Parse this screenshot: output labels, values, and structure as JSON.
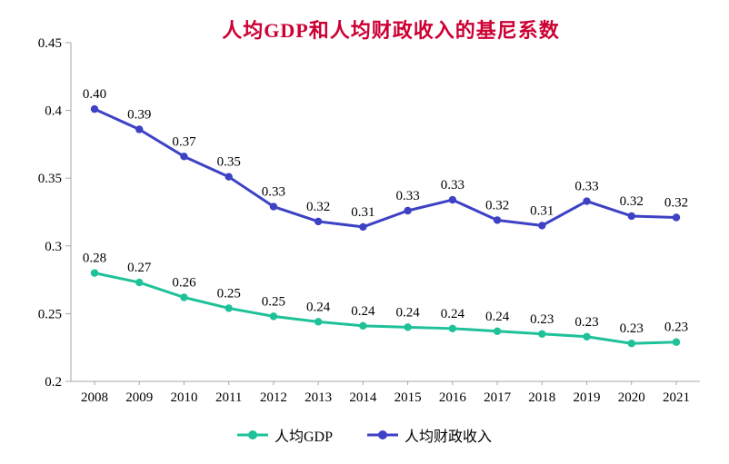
{
  "chart_data": {
    "type": "line",
    "title": "人均GDP和人均财政收入的基尼系数",
    "title_color": "#cc0033",
    "categories": [
      "2008",
      "2009",
      "2010",
      "2011",
      "2012",
      "2013",
      "2014",
      "2015",
      "2016",
      "2017",
      "2018",
      "2019",
      "2020",
      "2021"
    ],
    "series": [
      {
        "name": "人均GDP",
        "color": "#1fc198",
        "values": [
          0.28,
          0.273,
          0.262,
          0.254,
          0.248,
          0.244,
          0.241,
          0.24,
          0.239,
          0.237,
          0.235,
          0.233,
          0.228,
          0.229
        ],
        "labels": [
          "0.28",
          "0.27",
          "0.26",
          "0.25",
          "0.25",
          "0.24",
          "0.24",
          "0.24",
          "0.24",
          "0.24",
          "0.23",
          "0.23",
          "0.23",
          "0.23"
        ]
      },
      {
        "name": "人均财政收入",
        "color": "#3d42c4",
        "values": [
          0.401,
          0.386,
          0.366,
          0.351,
          0.329,
          0.318,
          0.314,
          0.326,
          0.334,
          0.319,
          0.315,
          0.333,
          0.322,
          0.321
        ],
        "labels": [
          "0.40",
          "0.39",
          "0.37",
          "0.35",
          "0.33",
          "0.32",
          "0.31",
          "0.33",
          "0.33",
          "0.32",
          "0.31",
          "0.33",
          "0.32",
          "0.32"
        ]
      }
    ],
    "ylim": [
      0.2,
      0.45
    ],
    "yticks": [
      0.2,
      0.25,
      0.3,
      0.35,
      0.4,
      0.45
    ],
    "ytick_labels": [
      "0.2",
      "0.25",
      "0.3",
      "0.35",
      "0.4",
      "0.45"
    ],
    "grid": false,
    "axis_color": "#a6a6a6",
    "legend_position": "bottom"
  }
}
